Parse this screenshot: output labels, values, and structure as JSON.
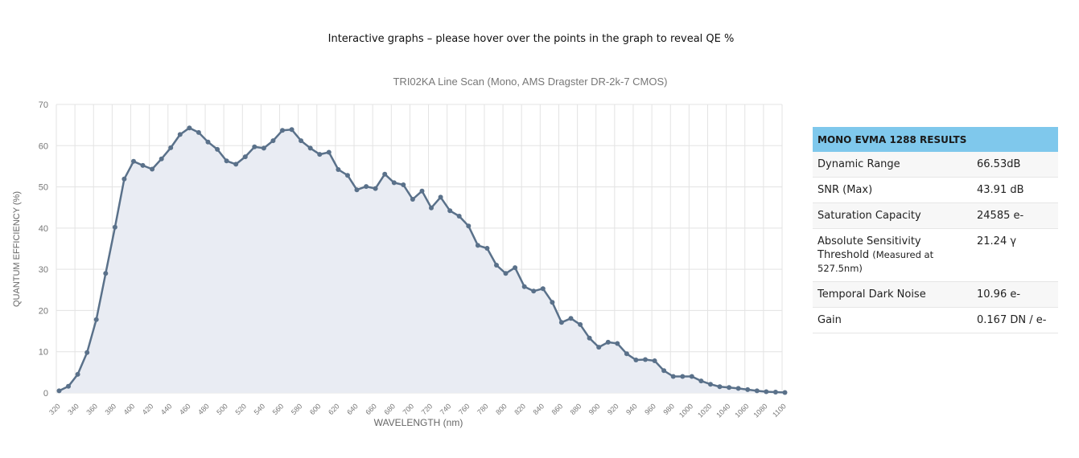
{
  "intro_text": "Interactive graphs – please hover over the points in the graph to reveal QE %",
  "chart_data": {
    "type": "line",
    "title": "TRI02KA Line Scan (Mono, AMS Dragster DR-2k-7 CMOS)",
    "xlabel": "WAVELENGTH (nm)",
    "ylabel": "QUANTUM EFFICIENCY (%)",
    "xlim": [
      320,
      1100
    ],
    "ylim": [
      0,
      70
    ],
    "xticks": [
      320,
      340,
      360,
      380,
      400,
      420,
      440,
      460,
      480,
      500,
      520,
      540,
      560,
      580,
      600,
      620,
      640,
      660,
      680,
      700,
      720,
      740,
      760,
      780,
      800,
      820,
      840,
      860,
      880,
      900,
      920,
      940,
      960,
      980,
      1000,
      1020,
      1040,
      1060,
      1080,
      1100
    ],
    "yticks": [
      0,
      10,
      20,
      30,
      40,
      50,
      60,
      70
    ],
    "grid": true,
    "line_color": "#5a718a",
    "fill_color": "#e9ecf3",
    "series": [
      {
        "x": [
          323,
          333,
          343,
          353,
          363,
          373,
          383,
          393,
          403,
          413,
          423,
          433,
          443,
          453,
          463,
          473,
          483,
          493,
          503,
          513,
          523,
          533,
          543,
          553,
          563,
          573,
          583,
          593,
          603,
          613,
          623,
          633,
          643,
          653,
          663,
          673,
          683,
          693,
          703,
          713,
          723,
          733,
          743,
          753,
          763,
          773,
          783,
          793,
          803,
          813,
          823,
          833,
          843,
          853,
          863,
          873,
          883,
          893,
          903,
          913,
          923,
          933,
          943,
          953,
          963,
          973,
          983,
          993,
          1003,
          1013,
          1023,
          1033,
          1043,
          1053,
          1063,
          1073,
          1083,
          1093,
          1103
        ],
        "y": [
          0.5,
          1.6,
          4.5,
          9.8,
          17.8,
          29,
          40.2,
          51.9,
          56.2,
          55.2,
          54.3,
          56.8,
          59.5,
          62.7,
          64.3,
          63.2,
          60.9,
          59.1,
          56.3,
          55.5,
          57.3,
          59.7,
          59.4,
          61.2,
          63.7,
          63.9,
          61.2,
          59.4,
          57.9,
          58.4,
          54.2,
          52.8,
          49.3,
          50.1,
          49.6,
          53.1,
          51,
          50.5,
          47,
          49,
          44.9,
          47.5,
          44.2,
          42.9,
          40.5,
          35.8,
          35.1,
          31,
          29,
          30.4,
          25.8,
          24.7,
          25.3,
          22,
          17.1,
          18.1,
          16.6,
          13.3,
          11.1,
          12.3,
          12,
          9.5,
          8,
          8.1,
          7.8,
          5.4,
          4,
          4,
          4,
          2.9,
          2.1,
          1.5,
          1.3,
          1.1,
          0.8,
          0.5,
          0.3,
          0.2,
          0.1
        ]
      }
    ]
  },
  "results": {
    "header": "MONO EVMA 1288 RESULTS",
    "rows": [
      {
        "label": "Dynamic Range",
        "note": "",
        "value": "66.53dB"
      },
      {
        "label": "SNR (Max)",
        "note": "",
        "value": "43.91 dB"
      },
      {
        "label": "Saturation Capacity",
        "note": "",
        "value": "24585 e-"
      },
      {
        "label": "Absolute Sensitivity Threshold",
        "note": "(Measured at 527.5nm)",
        "value": "21.24 γ"
      },
      {
        "label": "Temporal Dark Noise",
        "note": "",
        "value": "10.96 e-"
      },
      {
        "label": "Gain",
        "note": "",
        "value": "0.167 DN / e-"
      }
    ]
  }
}
